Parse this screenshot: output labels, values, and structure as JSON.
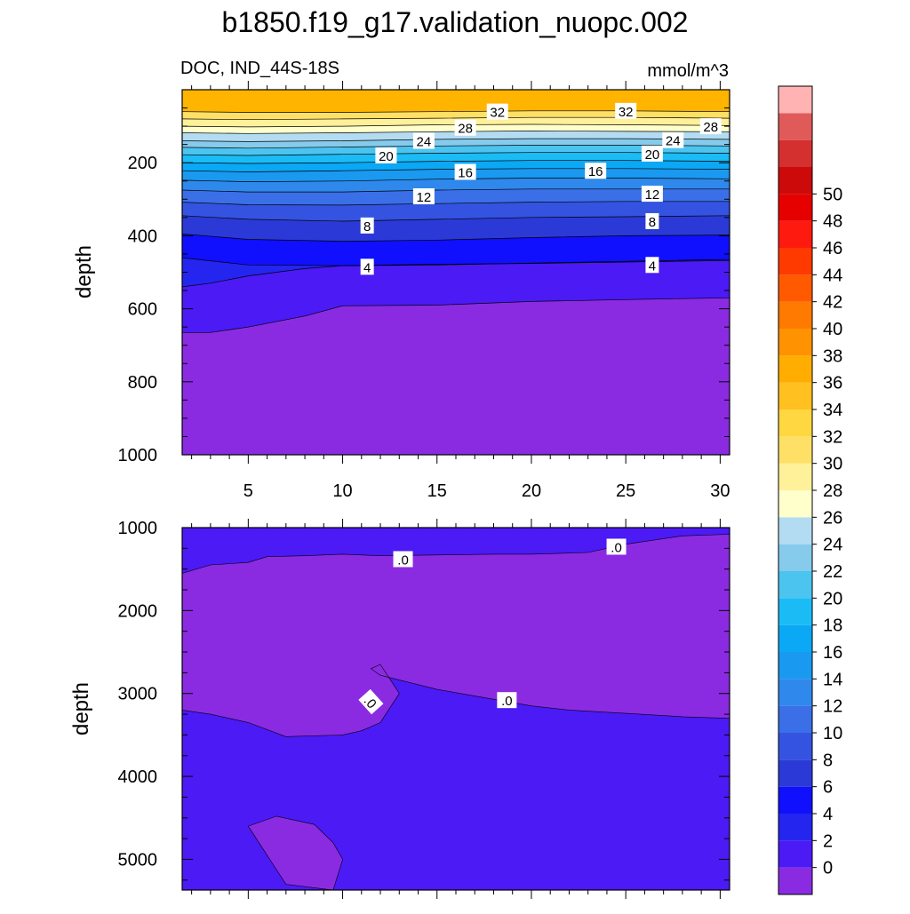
{
  "title": "b1850.f19_g17.validation_nuopc.002",
  "chart_data": [
    {
      "type": "contour",
      "panel": "upper",
      "title_left": "DOC, IND_44S-18S",
      "title_right": "mmol/m^3",
      "xlabel": "",
      "ylabel": "depth",
      "xlim": [
        1.5,
        30.5
      ],
      "ylim": [
        1000,
        0
      ],
      "xticks": [
        5,
        10,
        15,
        20,
        25,
        30
      ],
      "yticks": [
        200,
        400,
        600,
        800,
        1000
      ],
      "isolines": [
        {
          "level": 32,
          "x": [
            1.5,
            5,
            10,
            15,
            20,
            25,
            30.5
          ],
          "y": [
            60,
            62,
            62,
            60,
            58,
            58,
            60
          ]
        },
        {
          "level": 30,
          "x": [
            1.5,
            5,
            10,
            15,
            20,
            25,
            30.5
          ],
          "y": [
            80,
            82,
            80,
            78,
            76,
            76,
            78
          ]
        },
        {
          "level": 28,
          "x": [
            1.5,
            5,
            10,
            15,
            20,
            25,
            30.5
          ],
          "y": [
            100,
            102,
            100,
            96,
            95,
            96,
            98
          ]
        },
        {
          "level": 26,
          "x": [
            1.5,
            5,
            10,
            15,
            20,
            25,
            30.5
          ],
          "y": [
            118,
            120,
            118,
            115,
            113,
            114,
            115
          ]
        },
        {
          "level": 24,
          "x": [
            1.5,
            5,
            10,
            15,
            20,
            25,
            30.5
          ],
          "y": [
            140,
            142,
            140,
            136,
            134,
            134,
            136
          ]
        },
        {
          "level": 22,
          "x": [
            1.5,
            5,
            10,
            15,
            20,
            25,
            30.5
          ],
          "y": [
            158,
            160,
            157,
            154,
            152,
            152,
            154
          ]
        },
        {
          "level": 20,
          "x": [
            1.5,
            5,
            10,
            15,
            20,
            25,
            30.5
          ],
          "y": [
            178,
            180,
            177,
            174,
            172,
            172,
            174
          ]
        },
        {
          "level": 18,
          "x": [
            1.5,
            5,
            10,
            15,
            20,
            25,
            30.5
          ],
          "y": [
            200,
            202,
            200,
            196,
            194,
            194,
            196
          ]
        },
        {
          "level": 16,
          "x": [
            1.5,
            5,
            10,
            15,
            20,
            25,
            30.5
          ],
          "y": [
            222,
            225,
            222,
            218,
            216,
            216,
            218
          ]
        },
        {
          "level": 14,
          "x": [
            1.5,
            5,
            10,
            15,
            20,
            25,
            30.5
          ],
          "y": [
            248,
            252,
            250,
            245,
            242,
            242,
            244
          ]
        },
        {
          "level": 12,
          "x": [
            1.5,
            5,
            10,
            15,
            20,
            25,
            30.5
          ],
          "y": [
            275,
            280,
            280,
            275,
            272,
            272,
            272
          ]
        },
        {
          "level": 10,
          "x": [
            1.5,
            5,
            10,
            15,
            20,
            25,
            30.5
          ],
          "y": [
            308,
            315,
            316,
            312,
            308,
            306,
            306
          ]
        },
        {
          "level": 8,
          "x": [
            1.5,
            5,
            10,
            15,
            20,
            25,
            30.5
          ],
          "y": [
            345,
            355,
            360,
            355,
            350,
            348,
            345
          ]
        },
        {
          "level": 6,
          "x": [
            1.5,
            5,
            10,
            15,
            20,
            25,
            30.5
          ],
          "y": [
            395,
            410,
            415,
            412,
            405,
            400,
            398
          ]
        },
        {
          "level": 4,
          "x": [
            1.5,
            5,
            10,
            15,
            20,
            25,
            30.5
          ],
          "y": [
            460,
            480,
            482,
            480,
            475,
            470,
            465
          ]
        },
        {
          "level": 2,
          "x": [
            1.5,
            3,
            5,
            8,
            10,
            15,
            20,
            25,
            30.5
          ],
          "y": [
            540,
            530,
            510,
            490,
            482,
            478,
            476,
            472,
            468
          ]
        },
        {
          "level": 0,
          "x": [
            1.5,
            3,
            5,
            8,
            10,
            15,
            20,
            25,
            30.5
          ],
          "y": [
            665,
            665,
            650,
            620,
            592,
            590,
            580,
            575,
            570
          ]
        }
      ],
      "contour_labels": [
        {
          "text": "32",
          "x": 18.2,
          "y": 60
        },
        {
          "text": "32",
          "x": 25,
          "y": 58
        },
        {
          "text": "28",
          "x": 16.5,
          "y": 104
        },
        {
          "text": "28",
          "x": 29.5,
          "y": 100
        },
        {
          "text": "24",
          "x": 14.3,
          "y": 140
        },
        {
          "text": "24",
          "x": 27.5,
          "y": 138
        },
        {
          "text": "20",
          "x": 12.3,
          "y": 180
        },
        {
          "text": "20",
          "x": 26.4,
          "y": 175
        },
        {
          "text": "16",
          "x": 16.5,
          "y": 225
        },
        {
          "text": "16",
          "x": 23.4,
          "y": 222
        },
        {
          "text": "12",
          "x": 14.3,
          "y": 292
        },
        {
          "text": "12",
          "x": 26.4,
          "y": 285
        },
        {
          "text": "8",
          "x": 11.3,
          "y": 372
        },
        {
          "text": "8",
          "x": 26.4,
          "y": 360
        },
        {
          "text": "4",
          "x": 11.3,
          "y": 485
        },
        {
          "text": "4",
          "x": 26.4,
          "y": 480
        }
      ]
    },
    {
      "type": "contour",
      "panel": "lower",
      "xlabel": "",
      "ylabel": "depth",
      "xlim": [
        1.5,
        30.5
      ],
      "ylim": [
        5370,
        1000
      ],
      "yticks": [
        1000,
        2000,
        3000,
        4000,
        5000
      ],
      "regions_below_zero": [
        {
          "x": [
            1.5,
            3,
            5,
            6,
            8,
            10,
            12,
            15,
            18,
            20,
            23,
            25,
            28,
            30.5,
            30.5,
            30.5,
            28,
            25,
            22,
            20,
            15,
            12,
            11.5,
            12,
            13,
            12,
            11.5,
            11,
            10,
            7,
            5,
            3,
            1.5
          ],
          "y": [
            1550,
            1450,
            1420,
            1350,
            1340,
            1320,
            1340,
            1330,
            1320,
            1320,
            1300,
            1200,
            1100,
            1080,
            3300,
            3300,
            3280,
            3240,
            3200,
            3150,
            2950,
            2780,
            2700,
            2650,
            3000,
            3350,
            3400,
            3450,
            3500,
            3520,
            3350,
            3250,
            3200
          ]
        },
        {
          "x": [
            5,
            6.5,
            8.5,
            9.5,
            10,
            9.5,
            7,
            5
          ],
          "y": [
            4600,
            4480,
            4580,
            4800,
            5000,
            5370,
            5300,
            4600
          ]
        }
      ],
      "contour_labels": [
        {
          "text": ".0",
          "x": 13.2,
          "y": 1380,
          "angle": 0
        },
        {
          "text": ".0",
          "x": 24.5,
          "y": 1230,
          "angle": 0
        },
        {
          "text": ".0",
          "x": 18.7,
          "y": 3080,
          "angle": 0
        },
        {
          "text": ".0",
          "x": 11.5,
          "y": 3100,
          "angle": 48
        }
      ]
    }
  ],
  "colorbar": {
    "levels": [
      "50",
      "48",
      "46",
      "44",
      "42",
      "40",
      "38",
      "36",
      "34",
      "32",
      "30",
      "28",
      "26",
      "24",
      "22",
      "20",
      "18",
      "16",
      "14",
      "12",
      "10",
      "8",
      "6",
      "4",
      "2",
      "0"
    ],
    "colors": [
      "#8a2be2",
      "#4b1af5",
      "#2525f0",
      "#1010ff",
      "#2b3ad6",
      "#3453e0",
      "#3a6fe8",
      "#2f88ec",
      "#1a99f0",
      "#0aa8f5",
      "#1bbcf6",
      "#4cc4f0",
      "#86cbec",
      "#b3dcf2",
      "#ffffcc",
      "#fff09a",
      "#ffe066",
      "#ffd740",
      "#ffc020",
      "#ffad00",
      "#ff9200",
      "#ff7a00",
      "#ff5a00",
      "#ff3a00",
      "#ff1a10",
      "#e60000",
      "#cc0a0a",
      "#d43030",
      "#e05a5a",
      "#ffb3b3"
    ]
  }
}
